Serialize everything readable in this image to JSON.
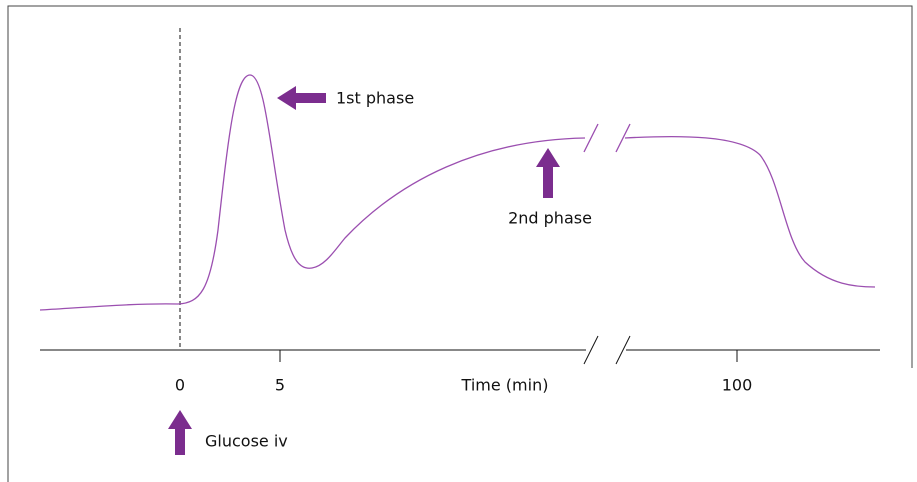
{
  "axis": {
    "title": "Time (min)",
    "ticks": [
      "0",
      "5",
      "100"
    ]
  },
  "annotations": {
    "first_phase": "1st phase",
    "second_phase": "2nd phase",
    "stimulus": "Glucose iv"
  }
}
